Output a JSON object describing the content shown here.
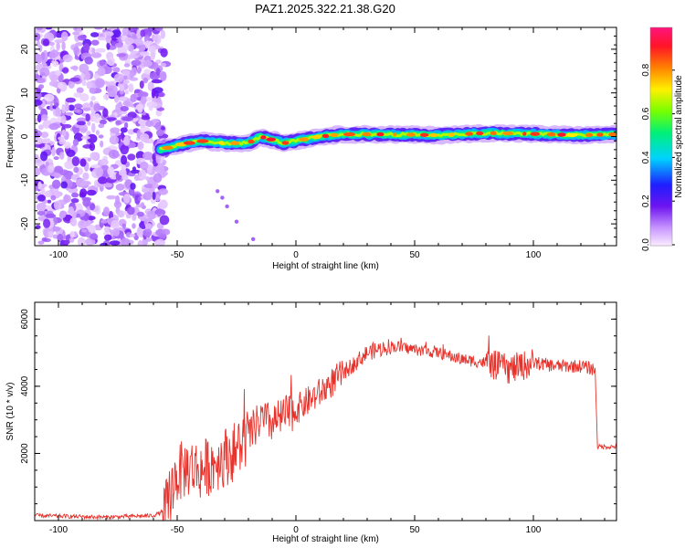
{
  "title": "PAZ1.2025.322.21.38.G20",
  "chart_data": [
    {
      "type": "heatmap",
      "xlabel": "Height of straight line (km)",
      "ylabel": "Frequency (Hz)",
      "xlim": [
        -110,
        135
      ],
      "ylim": [
        -25,
        25
      ],
      "xticks": [
        -100,
        -50,
        0,
        50,
        100
      ],
      "yticks": [
        -20,
        -10,
        0,
        10,
        20
      ],
      "colorbar": {
        "label": "Normalized spectral amplitude",
        "range": [
          0,
          1
        ],
        "ticks": [
          0.0,
          0.2,
          0.4,
          0.6,
          0.8
        ]
      },
      "ridge": {
        "description_points": [
          {
            "h": -57,
            "f": -3.0
          },
          {
            "h": -50,
            "f": -2.0
          },
          {
            "h": -40,
            "f": -1.0
          },
          {
            "h": -30,
            "f": -1.5
          },
          {
            "h": -20,
            "f": -1.5
          },
          {
            "h": -15,
            "f": 0.0
          },
          {
            "h": -5,
            "f": -1.5
          },
          {
            "h": 0,
            "f": -1.0
          },
          {
            "h": 5,
            "f": -0.5
          },
          {
            "h": 10,
            "f": 0.0
          },
          {
            "h": 20,
            "f": 0.5
          },
          {
            "h": 40,
            "f": 0.5
          },
          {
            "h": 60,
            "f": 0.3
          },
          {
            "h": 80,
            "f": 0.8
          },
          {
            "h": 100,
            "f": 0.6
          },
          {
            "h": 120,
            "f": 0.3
          },
          {
            "h": 135,
            "f": 0.5
          }
        ]
      },
      "noise_region_h": [
        -110,
        -57
      ]
    },
    {
      "type": "line",
      "xlabel": "Height of straight line (km)",
      "ylabel": "SNR (10 * v/v)",
      "xlim": [
        -110,
        135
      ],
      "ylim": [
        0,
        6500
      ],
      "xticks": [
        -100,
        -50,
        0,
        50,
        100
      ],
      "yticks": [
        2000,
        4000,
        6000
      ],
      "series_color": "#e8312a",
      "series": [
        {
          "name": "SNR",
          "x": [
            -110,
            -80,
            -60,
            -55,
            -52,
            -50,
            -45,
            -40,
            -35,
            -30,
            -25,
            -20,
            -15,
            -10,
            -5,
            0,
            10,
            20,
            30,
            40,
            50,
            60,
            70,
            80,
            90,
            95,
            100,
            110,
            120,
            126,
            127,
            130,
            135
          ],
          "y": [
            150,
            100,
            150,
            300,
            1000,
            1400,
            1600,
            1500,
            1700,
            1900,
            2100,
            2500,
            3000,
            2900,
            3100,
            3300,
            3800,
            4400,
            5000,
            5200,
            5100,
            5000,
            4800,
            4700,
            4500,
            4600,
            4700,
            4600,
            4600,
            4500,
            2200,
            2200,
            2200
          ]
        }
      ]
    }
  ]
}
